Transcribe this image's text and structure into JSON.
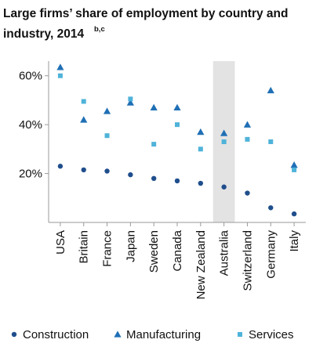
{
  "chart_data": {
    "type": "scatter",
    "title": "Large firms’ share of employment by country and industry, 2014",
    "title_superscript": "b,c",
    "categories": [
      "USA",
      "Britain",
      "France",
      "Japan",
      "Sweden",
      "Canada",
      "New Zealand",
      "Australia",
      "Switzerland",
      "Germany",
      "Italy"
    ],
    "highlighted_category": "Australia",
    "highlight_color": "#e3e3e3",
    "yticks": [
      "20%",
      "40%",
      "60%"
    ],
    "ytick_values": [
      20,
      40,
      60
    ],
    "ylim": [
      0,
      66
    ],
    "grid": false,
    "legend_position": "bottom",
    "series": [
      {
        "name": "Construction",
        "marker": "circle",
        "color": "#1f4e8c",
        "values": [
          23,
          21.5,
          21,
          19.5,
          18,
          17,
          16,
          14.5,
          12,
          6,
          3.5
        ]
      },
      {
        "name": "Manufacturing",
        "marker": "triangle",
        "color": "#1f6fb5",
        "values": [
          63.5,
          42,
          45.5,
          49,
          47,
          47,
          37,
          36.5,
          40,
          54,
          23.5
        ]
      },
      {
        "name": "Services",
        "marker": "square",
        "color": "#4fb3d9",
        "values": [
          60,
          49.5,
          35.5,
          50.5,
          32,
          40,
          30,
          33,
          34,
          33,
          21.5
        ]
      }
    ]
  }
}
